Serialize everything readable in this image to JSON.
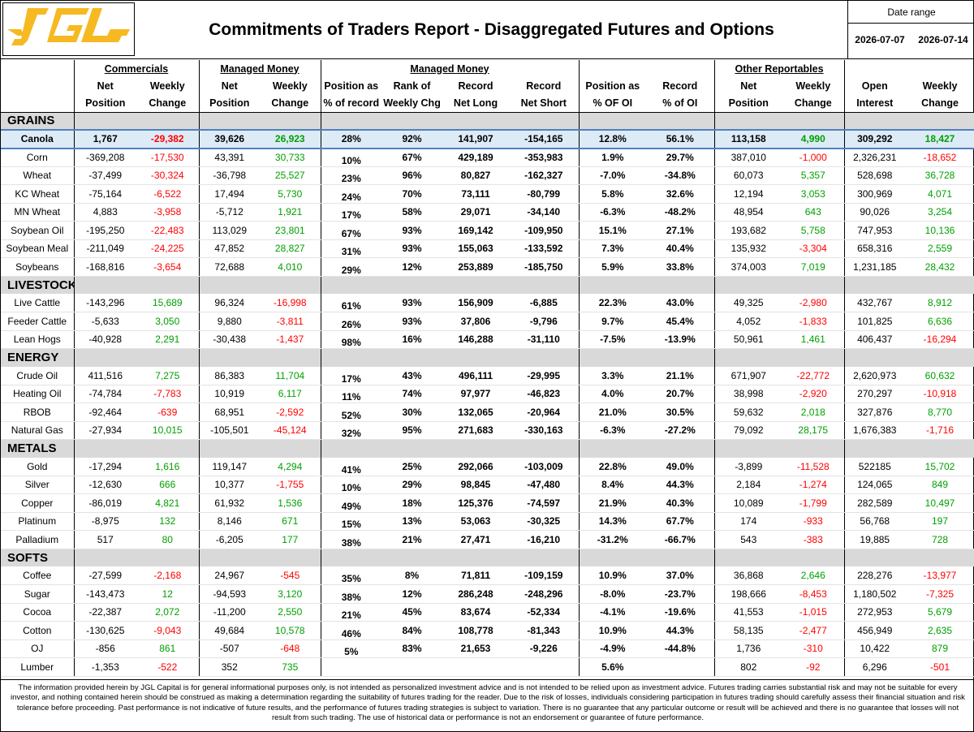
{
  "header": {
    "title": "Commitments of Traders Report - Disaggregated Futures and Options",
    "date_range_label": "Date range",
    "date_start": "2026-07-07",
    "date_end": "2026-07-14",
    "logo_text": "JGL",
    "colors": {
      "logo": "#f6b921",
      "highlight": "#ddebf7",
      "section": "#d9d9d9",
      "negative": "#ff0000",
      "positive": "#00a000"
    }
  },
  "groups": {
    "commercials": "Commercials",
    "managed_money": "Managed Money",
    "managed_money2": "Managed Money",
    "other_reportables": "Other Reportables"
  },
  "columns": {
    "h2": [
      "Net",
      "Weekly",
      "Net",
      "Weekly",
      "Position as",
      "Rank of",
      "Record",
      "Record",
      "Position as",
      "Record",
      "Net",
      "Weekly",
      "Open",
      "Weekly"
    ],
    "h3": [
      "Position",
      "Change",
      "Position",
      "Change",
      "% of record",
      "Weekly Chg",
      "Net Long",
      "Net Short",
      "% OF OI",
      "% of OI",
      "Position",
      "Change",
      "Interest",
      "Change"
    ]
  },
  "sections": [
    {
      "name": "GRAINS",
      "rows": [
        [
          "Canola",
          "1,767",
          "-29,382",
          "39,626",
          "26,923",
          "28%",
          "92%",
          "141,907",
          "-154,165",
          "12.8%",
          "56.1%",
          "113,158",
          "4,990",
          "309,292",
          "18,427"
        ],
        [
          "Corn",
          "-369,208",
          "-17,530",
          "43,391",
          "30,733",
          "10%",
          "67%",
          "429,189",
          "-353,983",
          "1.9%",
          "29.7%",
          "387,010",
          "-1,000",
          "2,326,231",
          "-18,652"
        ],
        [
          "Wheat",
          "-37,499",
          "-30,324",
          "-36,798",
          "25,527",
          "23%",
          "96%",
          "80,827",
          "-162,327",
          "-7.0%",
          "-34.8%",
          "60,073",
          "5,357",
          "528,698",
          "36,728"
        ],
        [
          "KC Wheat",
          "-75,164",
          "-6,522",
          "17,494",
          "5,730",
          "24%",
          "70%",
          "73,111",
          "-80,799",
          "5.8%",
          "32.6%",
          "12,194",
          "3,053",
          "300,969",
          "4,071"
        ],
        [
          "MN Wheat",
          "4,883",
          "-3,958",
          "-5,712",
          "1,921",
          "17%",
          "58%",
          "29,071",
          "-34,140",
          "-6.3%",
          "-48.2%",
          "48,954",
          "643",
          "90,026",
          "3,254"
        ],
        [
          "Soybean Oil",
          "-195,250",
          "-22,483",
          "113,029",
          "23,801",
          "67%",
          "93%",
          "169,142",
          "-109,950",
          "15.1%",
          "27.1%",
          "193,682",
          "5,758",
          "747,953",
          "10,136"
        ],
        [
          "Soybean Meal",
          "-211,049",
          "-24,225",
          "47,852",
          "28,827",
          "31%",
          "93%",
          "155,063",
          "-133,592",
          "7.3%",
          "40.4%",
          "135,932",
          "-3,304",
          "658,316",
          "2,559"
        ],
        [
          "Soybeans",
          "-168,816",
          "-3,654",
          "72,688",
          "4,010",
          "29%",
          "12%",
          "253,889",
          "-185,750",
          "5.9%",
          "33.8%",
          "374,003",
          "7,019",
          "1,231,185",
          "28,432"
        ]
      ]
    },
    {
      "name": "LIVESTOCK",
      "rows": [
        [
          "Live Cattle",
          "-143,296",
          "15,689",
          "96,324",
          "-16,998",
          "61%",
          "93%",
          "156,909",
          "-6,885",
          "22.3%",
          "43.0%",
          "49,325",
          "-2,980",
          "432,767",
          "8,912"
        ],
        [
          "Feeder Cattle",
          "-5,633",
          "3,050",
          "9,880",
          "-3,811",
          "26%",
          "93%",
          "37,806",
          "-9,796",
          "9.7%",
          "45.4%",
          "4,052",
          "-1,833",
          "101,825",
          "6,636"
        ],
        [
          "Lean Hogs",
          "-40,928",
          "2,291",
          "-30,438",
          "-1,437",
          "98%",
          "16%",
          "146,288",
          "-31,110",
          "-7.5%",
          "-13.9%",
          "50,961",
          "1,461",
          "406,437",
          "-16,294"
        ]
      ]
    },
    {
      "name": "ENERGY",
      "rows": [
        [
          "Crude Oil",
          "411,516",
          "7,275",
          "86,383",
          "11,704",
          "17%",
          "43%",
          "496,111",
          "-29,995",
          "3.3%",
          "21.1%",
          "671,907",
          "-22,772",
          "2,620,973",
          "60,632"
        ],
        [
          "Heating Oil",
          "-74,784",
          "-7,783",
          "10,919",
          "6,117",
          "11%",
          "74%",
          "97,977",
          "-46,823",
          "4.0%",
          "20.7%",
          "38,998",
          "-2,920",
          "270,297",
          "-10,918"
        ],
        [
          "RBOB",
          "-92,464",
          "-639",
          "68,951",
          "-2,592",
          "52%",
          "30%",
          "132,065",
          "-20,964",
          "21.0%",
          "30.5%",
          "59,632",
          "2,018",
          "327,876",
          "8,770"
        ],
        [
          "Natural Gas",
          "-27,934",
          "10,015",
          "-105,501",
          "-45,124",
          "32%",
          "95%",
          "271,683",
          "-330,163",
          "-6.3%",
          "-27.2%",
          "79,092",
          "28,175",
          "1,676,383",
          "-1,716"
        ]
      ]
    },
    {
      "name": "METALS",
      "rows": [
        [
          "Gold",
          "-17,294",
          "1,616",
          "119,147",
          "4,294",
          "41%",
          "25%",
          "292,066",
          "-103,009",
          "22.8%",
          "49.0%",
          "-3,899",
          "-11,528",
          "522185",
          "15,702"
        ],
        [
          "Silver",
          "-12,630",
          "666",
          "10,377",
          "-1,755",
          "10%",
          "29%",
          "98,845",
          "-47,480",
          "8.4%",
          "44.3%",
          "2,184",
          "-1,274",
          "124,065",
          "849"
        ],
        [
          "Copper",
          "-86,019",
          "4,821",
          "61,932",
          "1,536",
          "49%",
          "18%",
          "125,376",
          "-74,597",
          "21.9%",
          "40.3%",
          "10,089",
          "-1,799",
          "282,589",
          "10,497"
        ],
        [
          "Platinum",
          "-8,975",
          "132",
          "8,146",
          "671",
          "15%",
          "13%",
          "53,063",
          "-30,325",
          "14.3%",
          "67.7%",
          "174",
          "-933",
          "56,768",
          "197"
        ],
        [
          "Palladium",
          "517",
          "80",
          "-6,205",
          "177",
          "38%",
          "21%",
          "27,471",
          "-16,210",
          "-31.2%",
          "-66.7%",
          "543",
          "-383",
          "19,885",
          "728"
        ]
      ]
    },
    {
      "name": "SOFTS",
      "rows": [
        [
          "Coffee",
          "-27,599",
          "-2,168",
          "24,967",
          "-545",
          "35%",
          "8%",
          "71,811",
          "-109,159",
          "10.9%",
          "37.0%",
          "36,868",
          "2,646",
          "228,276",
          "-13,977"
        ],
        [
          "Sugar",
          "-143,473",
          "12",
          "-94,593",
          "3,120",
          "38%",
          "12%",
          "286,248",
          "-248,296",
          "-8.0%",
          "-23.7%",
          "198,666",
          "-8,453",
          "1,180,502",
          "-7,325"
        ],
        [
          "Cocoa",
          "-22,387",
          "2,072",
          "-11,200",
          "2,550",
          "21%",
          "45%",
          "83,674",
          "-52,334",
          "-4.1%",
          "-19.6%",
          "41,553",
          "-1,015",
          "272,953",
          "5,679"
        ],
        [
          "Cotton",
          "-130,625",
          "-9,043",
          "49,684",
          "10,578",
          "46%",
          "84%",
          "108,778",
          "-81,343",
          "10.9%",
          "44.3%",
          "58,135",
          "-2,477",
          "456,949",
          "2,635"
        ],
        [
          "OJ",
          "-856",
          "861",
          "-507",
          "-648",
          "5%",
          "83%",
          "21,653",
          "-9,226",
          "-4.9%",
          "-44.8%",
          "1,736",
          "-310",
          "10,422",
          "879"
        ],
        [
          "Lumber",
          "-1,353",
          "-522",
          "352",
          "735",
          "",
          "",
          "",
          "",
          "5.6%",
          "",
          "802",
          "-92",
          "6,296",
          "-501"
        ]
      ]
    }
  ],
  "disclaimer": "The information provided herein by JGL Capital is for general informational purposes only, is not intended as personalized investment advice and is not intended to be relied upon as investment advice.  Futures trading carries substantial risk and may not be suitable for every investor, and nothing contained herein should be construed as making a determination regarding the suitability of futures trading for the reader. Due to the risk of losses, individuals considering participation in futures trading should carefully assess their financial situation and risk tolerance before proceeding.  Past performance is not indicative of future results, and the performance of futures trading strategies is subject to variation. There is no guarantee that any particular outcome or result will be achieved and there is no guarantee that losses will not result from such trading. The use of historical data or performance is not an endorsement or guarantee of future performance."
}
